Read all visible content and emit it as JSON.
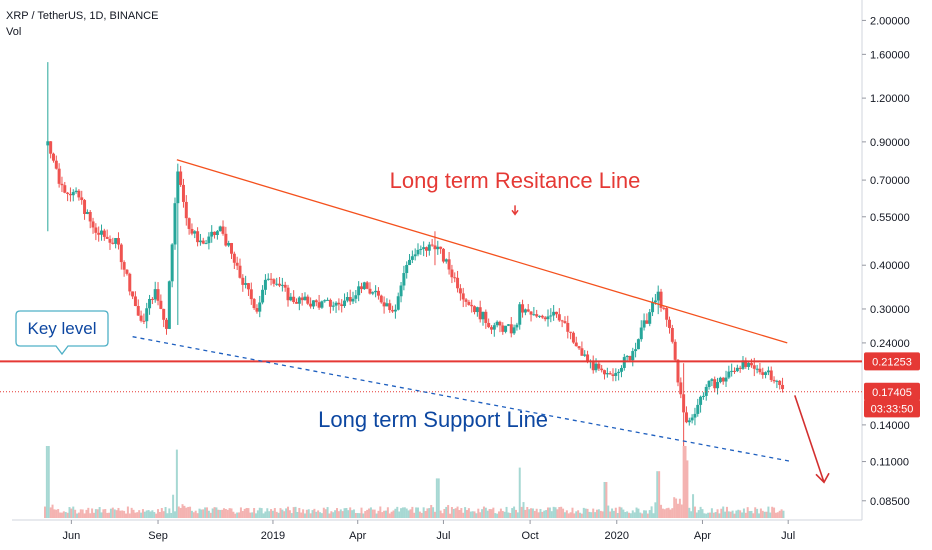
{
  "chart_data": {
    "type": "candlestick",
    "symbol_header": "XRP / TetherUS, 1D, BINANCE",
    "volume_label": "Vol",
    "scale": "log",
    "ylim": [
      0.08,
      2.1
    ],
    "y_ticks": [
      "2.00000",
      "1.60000",
      "1.20000",
      "0.90000",
      "0.70000",
      "0.55000",
      "0.40000",
      "0.30000",
      "0.24000",
      "0.14000",
      "0.11000",
      "0.08500"
    ],
    "x_ticks": [
      "Jun",
      "Sep",
      "2019",
      "Apr",
      "Jul",
      "Oct",
      "2020",
      "Apr",
      "Jul"
    ],
    "x_range": [
      "2018-05-04",
      "2020-08-25"
    ],
    "series": [
      {
        "name": "XRP/USDT price",
        "points": [
          [
            "2018-05-04",
            0.88
          ],
          [
            "2018-05-07",
            0.92
          ],
          [
            "2018-05-20",
            0.68
          ],
          [
            "2018-06-10",
            0.62
          ],
          [
            "2018-06-25",
            0.5
          ],
          [
            "2018-07-20",
            0.46
          ],
          [
            "2018-08-14",
            0.27
          ],
          [
            "2018-08-28",
            0.34
          ],
          [
            "2018-09-10",
            0.27
          ],
          [
            "2018-09-21",
            0.75
          ],
          [
            "2018-10-05",
            0.5
          ],
          [
            "2018-10-20",
            0.46
          ],
          [
            "2018-11-07",
            0.51
          ],
          [
            "2018-11-25",
            0.38
          ],
          [
            "2018-12-15",
            0.3
          ],
          [
            "2018-12-28",
            0.38
          ],
          [
            "2019-01-20",
            0.32
          ],
          [
            "2019-02-20",
            0.31
          ],
          [
            "2019-03-15",
            0.31
          ],
          [
            "2019-04-05",
            0.35
          ],
          [
            "2019-05-10",
            0.3
          ],
          [
            "2019-05-25",
            0.42
          ],
          [
            "2019-06-22",
            0.46
          ],
          [
            "2019-07-05",
            0.4
          ],
          [
            "2019-07-25",
            0.32
          ],
          [
            "2019-08-20",
            0.27
          ],
          [
            "2019-09-15",
            0.26
          ],
          [
            "2019-09-20",
            0.3
          ],
          [
            "2019-10-10",
            0.28
          ],
          [
            "2019-10-28",
            0.3
          ],
          [
            "2019-11-20",
            0.23
          ],
          [
            "2019-12-20",
            0.19
          ],
          [
            "2020-01-15",
            0.22
          ],
          [
            "2020-02-14",
            0.33
          ],
          [
            "2020-02-28",
            0.25
          ],
          [
            "2020-03-12",
            0.15
          ],
          [
            "2020-03-16",
            0.14
          ],
          [
            "2020-04-05",
            0.18
          ],
          [
            "2020-04-25",
            0.19
          ],
          [
            "2020-05-10",
            0.21
          ],
          [
            "2020-05-25",
            0.2
          ],
          [
            "2020-06-10",
            0.2
          ],
          [
            "2020-06-26",
            0.17405
          ]
        ],
        "wicks": [
          [
            "2018-05-07",
            0.5,
            1.52
          ],
          [
            "2018-09-21",
            0.27,
            0.78
          ],
          [
            "2019-06-22",
            0.4,
            0.5
          ],
          [
            "2020-02-14",
            0.29,
            0.35
          ],
          [
            "2020-03-13",
            0.1,
            0.21
          ]
        ]
      }
    ],
    "volume_peaks": [
      [
        "2018-05-07",
        1.0
      ],
      [
        "2018-09-21",
        0.95
      ],
      [
        "2019-06-25",
        0.55
      ],
      [
        "2019-09-20",
        0.7
      ],
      [
        "2019-12-20",
        0.5
      ],
      [
        "2020-02-14",
        0.65
      ],
      [
        "2020-03-13",
        1.0
      ],
      [
        "2020-03-16",
        0.8
      ]
    ],
    "trendlines": [
      {
        "name": "resistance",
        "from": [
          "2018-09-21",
          0.8
        ],
        "to": [
          "2020-06-30",
          0.24
        ],
        "style": "solid",
        "color": "#f4511e"
      },
      {
        "name": "support",
        "from": [
          "2018-08-05",
          0.25
        ],
        "to": [
          "2020-07-05",
          0.11
        ],
        "style": "dashed",
        "color": "#1e5fbf"
      }
    ],
    "horizontal_lines": [
      {
        "value": 0.21253,
        "style": "solid",
        "color": "#e53935"
      },
      {
        "value": 0.17405,
        "style": "dotted",
        "color": "#e53935"
      }
    ],
    "price_labels": [
      {
        "text": "0.21253",
        "value": 0.21253,
        "color": "#e53935"
      },
      {
        "text": "0.17405",
        "value": 0.17405,
        "color": "#e53935"
      },
      {
        "text": "03:33:50",
        "value": 0.156,
        "color": "#e53935"
      }
    ],
    "annotations": {
      "resistance_text": "Long term Resitance Line",
      "support_text": "Long term Support Line",
      "key_level_text": "Key level"
    },
    "colors": {
      "up": "#26a69a",
      "down": "#ef5350",
      "resistance": "#f4511e",
      "support": "#1e5fbf",
      "key_level": "#e53935",
      "callout_border": "#4fb0c6"
    }
  }
}
